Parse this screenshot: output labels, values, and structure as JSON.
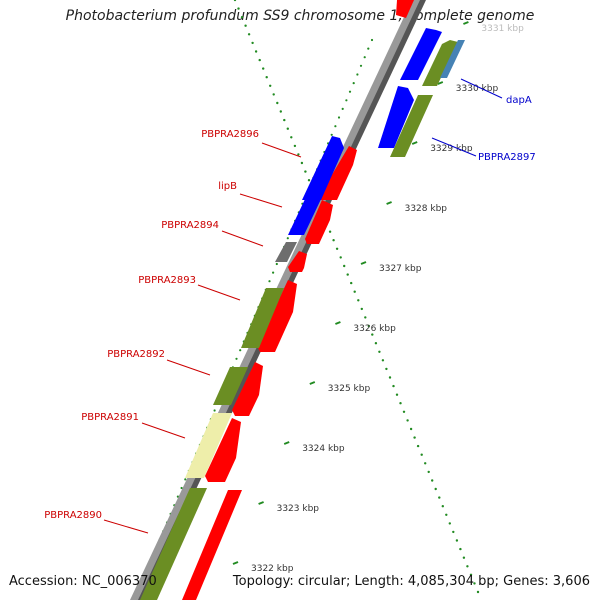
{
  "title": "Photobacterium profundum SS9 chromosome 1, complete genome",
  "accession": "Accession: NC_006370",
  "summary": "Topology: circular; Length: 4,085,304 bp; Genes: 3,606",
  "colors": {
    "forward_cds": "#0000ff",
    "reverse_cds": "#ff0000",
    "orf": "#6b8e23",
    "pale_orf": "#eeeeaa",
    "other": "#6e6e6e",
    "steelblue": "#4682b4",
    "backbone": "#888888",
    "ticks": "#228b22",
    "label_forward": "#0000cc",
    "label_reverse": "#cc0000"
  },
  "ruler": {
    "ticks": [
      "3322 kbp",
      "3323 kbp",
      "3324 kbp",
      "3325 kbp",
      "3326 kbp",
      "3327 kbp",
      "3328 kbp",
      "3329 kbp",
      "3330 kbp",
      "3331 kbp"
    ]
  },
  "gene_labels": [
    {
      "text": "PBPRA2896",
      "side": "left",
      "color": "reverse"
    },
    {
      "text": "lipB",
      "side": "left",
      "color": "reverse"
    },
    {
      "text": "PBPRA2894",
      "side": "left",
      "color": "reverse"
    },
    {
      "text": "PBPRA2893",
      "side": "left",
      "color": "reverse"
    },
    {
      "text": "PBPRA2892",
      "side": "left",
      "color": "reverse"
    },
    {
      "text": "PBPRA2891",
      "side": "left",
      "color": "reverse"
    },
    {
      "text": "PBPRA2890",
      "side": "left",
      "color": "reverse"
    },
    {
      "text": "dapA",
      "side": "right",
      "color": "forward"
    },
    {
      "text": "PBPRA2897",
      "side": "right",
      "color": "forward"
    }
  ]
}
